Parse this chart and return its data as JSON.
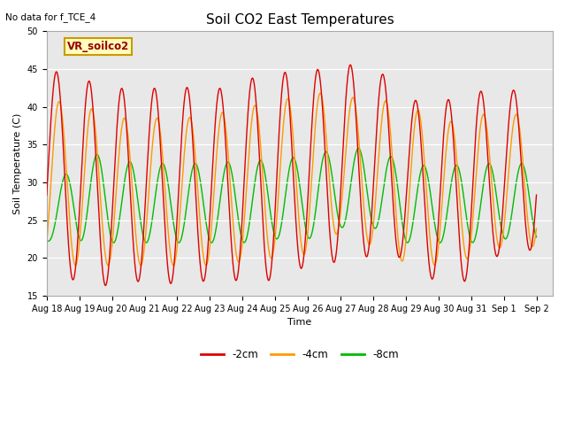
{
  "title": "Soil CO2 East Temperatures",
  "top_left_note": "No data for f_TCE_4",
  "vr_label": "VR_soilco2",
  "xlabel": "Time",
  "ylabel": "Soil Temperature (C)",
  "ylim": [
    15,
    50
  ],
  "xlim_days": [
    0,
    15.5
  ],
  "bg_color": "#e8e8e8",
  "fig_bg": "#ffffff",
  "legend": [
    {
      "label": "-2cm",
      "color": "#dd0000"
    },
    {
      "label": "-4cm",
      "color": "#ff9900"
    },
    {
      "label": "-8cm",
      "color": "#00bb00"
    }
  ],
  "x_tick_labels": [
    "Aug 18",
    "Aug 19",
    "Aug 20",
    "Aug 21",
    "Aug 22",
    "Aug 23",
    "Aug 24",
    "Aug 25",
    "Aug 26",
    "Aug 27",
    "Aug 28",
    "Aug 29",
    "Aug 30",
    "Aug 31",
    "Sep 1",
    "Sep 2"
  ],
  "x_tick_positions": [
    0,
    1,
    2,
    3,
    4,
    5,
    6,
    7,
    8,
    9,
    10,
    11,
    12,
    13,
    14,
    15
  ],
  "cycles": 15,
  "red_peaks": [
    45.0,
    43.8,
    42.5,
    42.3,
    42.8,
    42.0,
    43.5,
    44.5,
    44.7,
    45.5,
    45.7,
    41.0,
    40.5,
    42.0,
    42.2
  ],
  "red_troughs": [
    19.5,
    16.5,
    16.3,
    17.0,
    16.5,
    17.0,
    17.0,
    17.0,
    19.0,
    19.5,
    20.3,
    20.0,
    16.5,
    17.0,
    21.0
  ],
  "orange_peaks": [
    40.8,
    40.5,
    38.5,
    38.5,
    38.5,
    38.8,
    40.0,
    40.5,
    42.0,
    41.5,
    40.8,
    40.8,
    37.5,
    39.0,
    39.0
  ],
  "orange_troughs": [
    19.0,
    19.0,
    19.0,
    19.0,
    19.0,
    19.0,
    19.5,
    20.0,
    20.5,
    23.5,
    21.5,
    19.3,
    19.0,
    20.0,
    21.5
  ],
  "green_peaks": [
    26.5,
    34.5,
    33.0,
    32.5,
    32.5,
    32.5,
    32.8,
    33.0,
    33.5,
    34.5,
    34.5,
    32.5,
    32.0,
    32.5,
    32.5
  ],
  "green_troughs": [
    22.2,
    22.3,
    22.0,
    22.0,
    22.0,
    22.0,
    22.0,
    22.5,
    22.5,
    24.0,
    24.0,
    22.0,
    22.0,
    22.0,
    22.5
  ],
  "red_peak_phase": 0.3,
  "orange_peak_phase": 0.38,
  "green_peak_phase": 0.55
}
